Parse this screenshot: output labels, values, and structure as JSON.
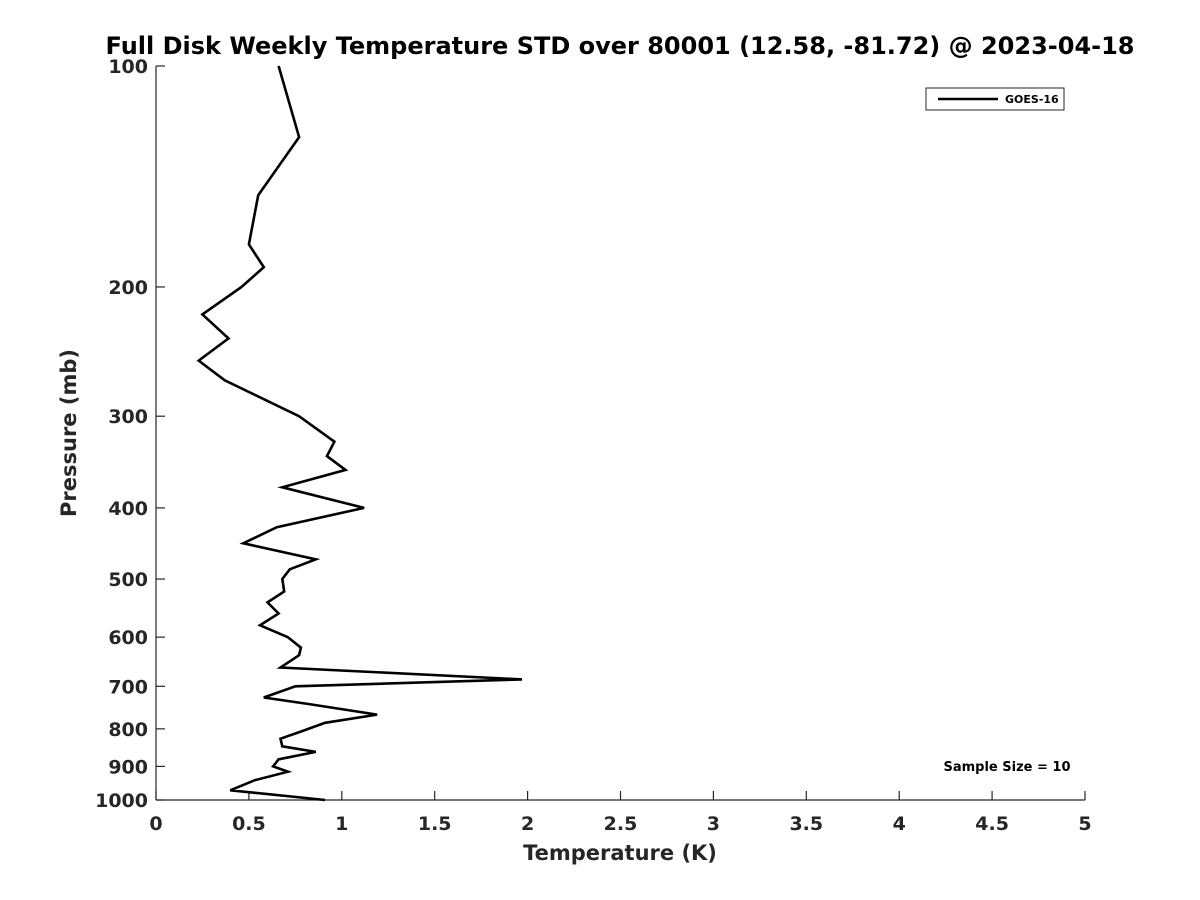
{
  "chart_data": {
    "type": "line",
    "title": "Full Disk Weekly Temperature STD over 80001 (12.58, -81.72) @ 2023-04-18",
    "xlabel": "Temperature (K)",
    "ylabel": "Pressure (mb)",
    "xlim": [
      0,
      5
    ],
    "ylim": [
      100,
      1000
    ],
    "y_scale": "log",
    "y_reversed": true,
    "grid": false,
    "legend_position": "top-right",
    "x_ticks": [
      0,
      0.5,
      1,
      1.5,
      2,
      2.5,
      3,
      3.5,
      4,
      4.5,
      5
    ],
    "x_tick_labels": [
      "0",
      "0.5",
      "1",
      "1.5",
      "2",
      "2.5",
      "3",
      "3.5",
      "4",
      "4.5",
      "5"
    ],
    "y_ticks": [
      100,
      200,
      300,
      400,
      500,
      600,
      700,
      800,
      900,
      1000
    ],
    "y_tick_labels": [
      "100",
      "200",
      "300",
      "400",
      "500",
      "600",
      "700",
      "800",
      "900",
      "1000"
    ],
    "series": [
      {
        "name": "GOES-16",
        "color": "#000000",
        "points": [
          [
            0.66,
            100
          ],
          [
            0.77,
            125
          ],
          [
            0.55,
            150
          ],
          [
            0.5,
            175
          ],
          [
            0.58,
            188
          ],
          [
            0.46,
            200
          ],
          [
            0.25,
            218
          ],
          [
            0.39,
            235
          ],
          [
            0.23,
            252
          ],
          [
            0.37,
            268
          ],
          [
            0.77,
            300
          ],
          [
            0.96,
            325
          ],
          [
            0.92,
            340
          ],
          [
            1.02,
            355
          ],
          [
            0.68,
            375
          ],
          [
            1.12,
            400
          ],
          [
            0.65,
            425
          ],
          [
            0.47,
            447
          ],
          [
            0.86,
            470
          ],
          [
            0.72,
            485
          ],
          [
            0.68,
            500
          ],
          [
            0.69,
            520
          ],
          [
            0.6,
            538
          ],
          [
            0.66,
            557
          ],
          [
            0.56,
            578
          ],
          [
            0.71,
            600
          ],
          [
            0.78,
            620
          ],
          [
            0.77,
            635
          ],
          [
            0.67,
            660
          ],
          [
            1.97,
            685
          ],
          [
            0.75,
            700
          ],
          [
            0.58,
            725
          ],
          [
            0.82,
            740
          ],
          [
            1.19,
            765
          ],
          [
            0.91,
            785
          ],
          [
            0.79,
            805
          ],
          [
            0.67,
            825
          ],
          [
            0.68,
            845
          ],
          [
            0.86,
            860
          ],
          [
            0.66,
            880
          ],
          [
            0.63,
            900
          ],
          [
            0.71,
            915
          ],
          [
            0.53,
            940
          ],
          [
            0.4,
            970
          ],
          [
            0.91,
            1000
          ]
        ]
      }
    ],
    "annotations": [
      {
        "text": "Sample Size = 10",
        "x": 4.5,
        "y": 900
      }
    ]
  }
}
